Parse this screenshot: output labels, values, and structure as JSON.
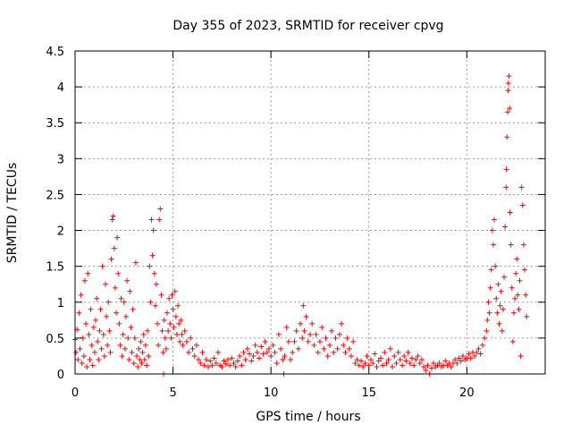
{
  "chart_data": {
    "type": "scatter",
    "title": "Day 355 of 2023, SRMTID for receiver cpvg",
    "xlabel": "GPS time / hours",
    "ylabel": "SRMTID / TECUs",
    "xlim": [
      0,
      24
    ],
    "ylim": [
      0,
      4.5
    ],
    "grid": true,
    "marker": "+",
    "color": "#ff0000",
    "x_ticks": [
      0,
      5,
      10,
      15,
      20
    ],
    "x_tick_labels": [
      "0",
      "5",
      "10",
      "15",
      "20"
    ],
    "y_ticks": [
      0,
      0.5,
      1,
      1.5,
      2,
      2.5,
      3,
      3.5,
      4,
      4.5
    ],
    "y_tick_labels": [
      "0",
      "0.5",
      "1",
      "1.5",
      "2",
      "2.5",
      "3",
      "3.5",
      "4",
      "4.5"
    ],
    "series": [
      {
        "name": "SRMTID",
        "points": [
          [
            0.0,
            0.48
          ],
          [
            0.05,
            0.3
          ],
          [
            0.1,
            0.62
          ],
          [
            0.15,
            0.2
          ],
          [
            0.2,
            0.85
          ],
          [
            0.25,
            0.35
          ],
          [
            0.3,
            1.1
          ],
          [
            0.35,
            0.15
          ],
          [
            0.4,
            0.5
          ],
          [
            0.45,
            0.25
          ],
          [
            0.5,
            1.3
          ],
          [
            0.55,
            0.7
          ],
          [
            0.6,
            0.1
          ],
          [
            0.65,
            1.4
          ],
          [
            0.7,
            0.55
          ],
          [
            0.75,
            0.2
          ],
          [
            0.8,
            0.9
          ],
          [
            0.85,
            0.4
          ],
          [
            0.9,
            0.12
          ],
          [
            0.95,
            0.65
          ],
          [
            1.0,
            0.3
          ],
          [
            1.05,
            0.75
          ],
          [
            1.1,
            1.05
          ],
          [
            1.15,
            0.45
          ],
          [
            1.2,
            0.2
          ],
          [
            1.25,
            0.6
          ],
          [
            1.3,
            0.9
          ],
          [
            1.35,
            0.35
          ],
          [
            1.4,
            1.5
          ],
          [
            1.45,
            0.55
          ],
          [
            1.5,
            0.25
          ],
          [
            1.55,
            1.25
          ],
          [
            1.6,
            0.8
          ],
          [
            1.65,
            0.4
          ],
          [
            1.7,
            1.0
          ],
          [
            1.75,
            0.6
          ],
          [
            1.8,
            0.3
          ],
          [
            1.85,
            1.6
          ],
          [
            1.9,
            2.15
          ],
          [
            1.95,
            2.2
          ],
          [
            2.0,
            1.75
          ],
          [
            2.05,
            1.2
          ],
          [
            2.1,
            0.85
          ],
          [
            2.15,
            1.9
          ],
          [
            2.2,
            1.4
          ],
          [
            2.25,
            0.7
          ],
          [
            2.3,
            0.4
          ],
          [
            2.35,
            1.05
          ],
          [
            2.4,
            0.25
          ],
          [
            2.45,
            0.55
          ],
          [
            2.5,
            1.0
          ],
          [
            2.55,
            0.35
          ],
          [
            2.6,
            0.8
          ],
          [
            2.65,
            1.3
          ],
          [
            2.7,
            0.5
          ],
          [
            2.75,
            0.2
          ],
          [
            2.8,
            1.15
          ],
          [
            2.85,
            0.65
          ],
          [
            2.9,
            0.3
          ],
          [
            2.95,
            0.9
          ],
          [
            3.0,
            0.15
          ],
          [
            3.05,
            0.5
          ],
          [
            3.1,
            1.55
          ],
          [
            3.15,
            0.25
          ],
          [
            3.2,
            0.1
          ],
          [
            3.25,
            0.35
          ],
          [
            3.3,
            0.2
          ],
          [
            3.35,
            0.45
          ],
          [
            3.4,
            0.15
          ],
          [
            3.45,
            0.3
          ],
          [
            3.5,
            0.55
          ],
          [
            3.55,
            0.2
          ],
          [
            3.6,
            0.4
          ],
          [
            3.65,
            0.12
          ],
          [
            3.7,
            0.6
          ],
          [
            3.75,
            0.25
          ],
          [
            3.8,
            1.5
          ],
          [
            3.85,
            1.0
          ],
          [
            3.9,
            2.15
          ],
          [
            3.95,
            1.65
          ],
          [
            4.0,
            2.0
          ],
          [
            4.05,
            1.4
          ],
          [
            4.1,
            0.95
          ],
          [
            4.15,
            1.25
          ],
          [
            4.2,
            0.7
          ],
          [
            4.25,
            0.4
          ],
          [
            4.3,
            2.15
          ],
          [
            4.35,
            2.3
          ],
          [
            4.4,
            1.1
          ],
          [
            4.45,
            0.6
          ],
          [
            4.5,
            0.3
          ],
          [
            4.52,
            0.0
          ],
          [
            4.55,
            0.75
          ],
          [
            4.6,
            0.5
          ],
          [
            4.65,
            0.35
          ],
          [
            4.7,
            0.85
          ],
          [
            4.75,
            0.6
          ],
          [
            4.8,
            1.05
          ],
          [
            4.85,
            0.7
          ],
          [
            4.9,
            0.5
          ],
          [
            4.95,
            1.1
          ],
          [
            5.0,
            0.9
          ],
          [
            5.05,
            0.65
          ],
          [
            5.1,
            1.15
          ],
          [
            5.15,
            0.8
          ],
          [
            5.2,
            0.55
          ],
          [
            5.25,
            0.95
          ],
          [
            5.3,
            0.7
          ],
          [
            5.35,
            0.45
          ],
          [
            5.4,
            0.75
          ],
          [
            5.45,
            0.55
          ],
          [
            5.5,
            0.4
          ],
          [
            5.6,
            0.6
          ],
          [
            5.7,
            0.45
          ],
          [
            5.8,
            0.3
          ],
          [
            5.9,
            0.5
          ],
          [
            6.0,
            0.35
          ],
          [
            6.1,
            0.25
          ],
          [
            6.2,
            0.4
          ],
          [
            6.3,
            0.2
          ],
          [
            6.4,
            0.15
          ],
          [
            6.5,
            0.3
          ],
          [
            6.6,
            0.12
          ],
          [
            6.7,
            0.2
          ],
          [
            6.8,
            0.1
          ],
          [
            6.9,
            0.18
          ],
          [
            7.0,
            0.12
          ],
          [
            7.1,
            0.22
          ],
          [
            7.2,
            0.15
          ],
          [
            7.3,
            0.3
          ],
          [
            7.4,
            0.12
          ],
          [
            7.5,
            0.1
          ],
          [
            7.6,
            0.18
          ],
          [
            7.7,
            0.14
          ],
          [
            7.8,
            0.2
          ],
          [
            7.9,
            0.12
          ],
          [
            8.0,
            0.22
          ],
          [
            8.1,
            0.15
          ],
          [
            8.2,
            0.1
          ],
          [
            8.3,
            0.18
          ],
          [
            8.4,
            0.25
          ],
          [
            8.5,
            0.12
          ],
          [
            8.6,
            0.3
          ],
          [
            8.7,
            0.2
          ],
          [
            8.8,
            0.35
          ],
          [
            8.9,
            0.28
          ],
          [
            9.0,
            0.18
          ],
          [
            9.1,
            0.25
          ],
          [
            9.2,
            0.4
          ],
          [
            9.3,
            0.3
          ],
          [
            9.4,
            0.22
          ],
          [
            9.5,
            0.38
          ],
          [
            9.6,
            0.28
          ],
          [
            9.7,
            0.45
          ],
          [
            9.8,
            0.3
          ],
          [
            9.9,
            0.35
          ],
          [
            10.0,
            0.25
          ],
          [
            10.1,
            0.4
          ],
          [
            10.2,
            0.3
          ],
          [
            10.3,
            0.15
          ],
          [
            10.4,
            0.55
          ],
          [
            10.5,
            0.35
          ],
          [
            10.6,
            0.2
          ],
          [
            10.65,
            0.0
          ],
          [
            10.7,
            0.25
          ],
          [
            10.8,
            0.65
          ],
          [
            10.9,
            0.45
          ],
          [
            11.0,
            0.2
          ],
          [
            11.1,
            0.3
          ],
          [
            11.2,
            0.45
          ],
          [
            11.3,
            0.6
          ],
          [
            11.4,
            0.35
          ],
          [
            11.5,
            0.7
          ],
          [
            11.6,
            0.5
          ],
          [
            11.65,
            0.95
          ],
          [
            11.7,
            0.6
          ],
          [
            11.8,
            0.8
          ],
          [
            11.9,
            0.45
          ],
          [
            12.0,
            0.55
          ],
          [
            12.1,
            0.7
          ],
          [
            12.2,
            0.4
          ],
          [
            12.3,
            0.55
          ],
          [
            12.4,
            0.3
          ],
          [
            12.5,
            0.45
          ],
          [
            12.6,
            0.65
          ],
          [
            12.7,
            0.35
          ],
          [
            12.8,
            0.5
          ],
          [
            12.9,
            0.25
          ],
          [
            13.0,
            0.4
          ],
          [
            13.1,
            0.6
          ],
          [
            13.2,
            0.3
          ],
          [
            13.3,
            0.5
          ],
          [
            13.4,
            0.35
          ],
          [
            13.5,
            0.55
          ],
          [
            13.6,
            0.7
          ],
          [
            13.7,
            0.4
          ],
          [
            13.8,
            0.3
          ],
          [
            13.9,
            0.5
          ],
          [
            14.0,
            0.35
          ],
          [
            14.1,
            0.25
          ],
          [
            14.2,
            0.45
          ],
          [
            14.3,
            0.15
          ],
          [
            14.4,
            0.2
          ],
          [
            14.5,
            0.12
          ],
          [
            14.6,
            0.18
          ],
          [
            14.7,
            0.1
          ],
          [
            14.8,
            0.15
          ],
          [
            14.9,
            0.25
          ],
          [
            15.0,
            0.12
          ],
          [
            15.1,
            0.2
          ],
          [
            15.2,
            0.15
          ],
          [
            15.3,
            0.28
          ],
          [
            15.4,
            0.1
          ],
          [
            15.5,
            0.18
          ],
          [
            15.6,
            0.22
          ],
          [
            15.7,
            0.12
          ],
          [
            15.8,
            0.3
          ],
          [
            15.9,
            0.15
          ],
          [
            16.0,
            0.2
          ],
          [
            16.1,
            0.35
          ],
          [
            16.2,
            0.1
          ],
          [
            16.3,
            0.25
          ],
          [
            16.4,
            0.15
          ],
          [
            16.5,
            0.3
          ],
          [
            16.6,
            0.2
          ],
          [
            16.7,
            0.12
          ],
          [
            16.8,
            0.25
          ],
          [
            16.9,
            0.18
          ],
          [
            17.0,
            0.3
          ],
          [
            17.1,
            0.15
          ],
          [
            17.2,
            0.22
          ],
          [
            17.3,
            0.12
          ],
          [
            17.4,
            0.2
          ],
          [
            17.5,
            0.25
          ],
          [
            17.6,
            0.15
          ],
          [
            17.7,
            0.2
          ],
          [
            17.8,
            0.1
          ],
          [
            17.9,
            0.05
          ],
          [
            18.0,
            0.12
          ],
          [
            18.1,
            0.0
          ],
          [
            18.2,
            0.08
          ],
          [
            18.3,
            0.15
          ],
          [
            18.4,
            0.1
          ],
          [
            18.5,
            0.12
          ],
          [
            18.6,
            0.15
          ],
          [
            18.7,
            0.1
          ],
          [
            18.8,
            0.12
          ],
          [
            18.9,
            0.18
          ],
          [
            19.0,
            0.12
          ],
          [
            19.1,
            0.15
          ],
          [
            19.2,
            0.1
          ],
          [
            19.3,
            0.15
          ],
          [
            19.4,
            0.2
          ],
          [
            19.5,
            0.15
          ],
          [
            19.6,
            0.22
          ],
          [
            19.7,
            0.18
          ],
          [
            19.8,
            0.25
          ],
          [
            19.9,
            0.2
          ],
          [
            20.0,
            0.22
          ],
          [
            20.1,
            0.28
          ],
          [
            20.2,
            0.22
          ],
          [
            20.3,
            0.3
          ],
          [
            20.4,
            0.25
          ],
          [
            20.5,
            0.3
          ],
          [
            20.6,
            0.35
          ],
          [
            20.7,
            0.28
          ],
          [
            20.8,
            0.4
          ],
          [
            20.9,
            0.5
          ],
          [
            21.0,
            0.6
          ],
          [
            21.05,
            0.75
          ],
          [
            21.1,
            1.0
          ],
          [
            21.15,
            0.85
          ],
          [
            21.2,
            1.2
          ],
          [
            21.25,
            1.45
          ],
          [
            21.3,
            2.0
          ],
          [
            21.35,
            1.8
          ],
          [
            21.4,
            2.15
          ],
          [
            21.45,
            1.5
          ],
          [
            21.5,
            1.05
          ],
          [
            21.55,
            0.85
          ],
          [
            21.6,
            1.25
          ],
          [
            21.65,
            0.7
          ],
          [
            21.7,
            0.95
          ],
          [
            21.75,
            1.15
          ],
          [
            21.8,
            0.6
          ],
          [
            21.85,
            0.9
          ],
          [
            21.9,
            1.35
          ],
          [
            21.95,
            2.05
          ],
          [
            22.0,
            2.6
          ],
          [
            22.02,
            2.85
          ],
          [
            22.05,
            3.3
          ],
          [
            22.08,
            3.65
          ],
          [
            22.1,
            3.95
          ],
          [
            22.12,
            4.05
          ],
          [
            22.15,
            4.15
          ],
          [
            22.18,
            3.7
          ],
          [
            22.2,
            2.25
          ],
          [
            22.25,
            1.8
          ],
          [
            22.3,
            1.2
          ],
          [
            22.35,
            0.45
          ],
          [
            22.4,
            0.85
          ],
          [
            22.45,
            1.05
          ],
          [
            22.5,
            1.4
          ],
          [
            22.55,
            1.6
          ],
          [
            22.6,
            1.1
          ],
          [
            22.65,
            0.9
          ],
          [
            22.7,
            1.3
          ],
          [
            22.75,
            0.25
          ],
          [
            22.8,
            2.6
          ],
          [
            22.85,
            2.35
          ],
          [
            22.9,
            1.8
          ],
          [
            22.95,
            1.45
          ],
          [
            23.0,
            1.1
          ],
          [
            23.05,
            0.8
          ]
        ]
      }
    ]
  }
}
